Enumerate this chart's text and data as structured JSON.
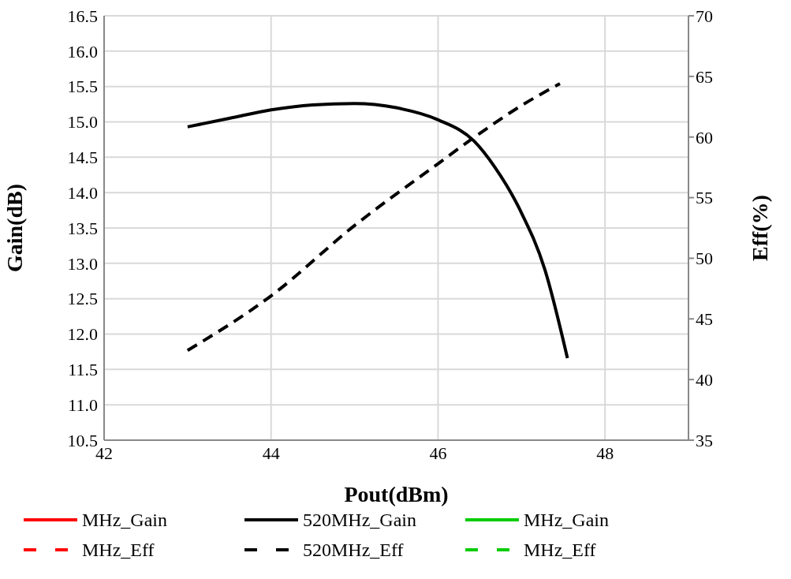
{
  "chart_data": {
    "type": "line",
    "xlabel": "Pout(dBm)",
    "ylabel": "Gain(dB)",
    "y2label": "Eff(%)",
    "xlim": [
      42,
      49
    ],
    "xticks": [
      42,
      44,
      46,
      48
    ],
    "ylim": [
      10.5,
      16.5
    ],
    "yticks": [
      {
        "value": 10.5,
        "label": "10.5"
      },
      {
        "value": 11,
        "label": "11.0"
      },
      {
        "value": 11.5,
        "label": "11.5"
      },
      {
        "value": 12,
        "label": "12.0"
      },
      {
        "value": 12.5,
        "label": "12.5"
      },
      {
        "value": 13,
        "label": "13.0"
      },
      {
        "value": 13.5,
        "label": "13.5"
      },
      {
        "value": 14,
        "label": "14.0"
      },
      {
        "value": 14.5,
        "label": "14.5"
      },
      {
        "value": 15,
        "label": "15.0"
      },
      {
        "value": 15.5,
        "label": "15.5"
      },
      {
        "value": 16,
        "label": "16.0"
      },
      {
        "value": 16.5,
        "label": "16.5"
      }
    ],
    "y2lim": [
      35,
      70
    ],
    "y2ticks": [
      35,
      40,
      45,
      50,
      55,
      60,
      65,
      70
    ],
    "grid": true,
    "legend": "bottom",
    "marker": "none",
    "series": [
      {
        "name": "MHz_Gain",
        "color": "#ff0000",
        "line_style": "solid"
      },
      {
        "name": "MHz_Eff",
        "color": "#ff0000",
        "line_style": "dashed",
        "axis": "y2"
      },
      {
        "name": "520MHz_Gain",
        "color": "#000000",
        "line_style": "solid",
        "x": [
          43,
          43.5,
          44,
          44.5,
          45,
          45.5,
          46,
          46.43,
          46.68,
          46.98,
          47.28,
          47.55
        ],
        "values": [
          14.93,
          15.05,
          15.17,
          15.24,
          15.26,
          15.2,
          15.03,
          14.73,
          14.36,
          13.76,
          12.91,
          11.66
        ]
      },
      {
        "name": "520MHz_Eff",
        "color": "#000000",
        "line_style": "dashed",
        "axis": "y2",
        "x": [
          43,
          44,
          45,
          46,
          46.5,
          47,
          47.46
        ],
        "values": [
          42.4,
          46.9,
          52.7,
          57.8,
          60.3,
          62.6,
          64.4
        ]
      },
      {
        "name": "MHz_Gain",
        "color": "#00cc00",
        "line_style": "solid"
      },
      {
        "name": "MHz_Eff",
        "color": "#00cc00",
        "line_style": "dashed",
        "axis": "y2"
      }
    ]
  }
}
